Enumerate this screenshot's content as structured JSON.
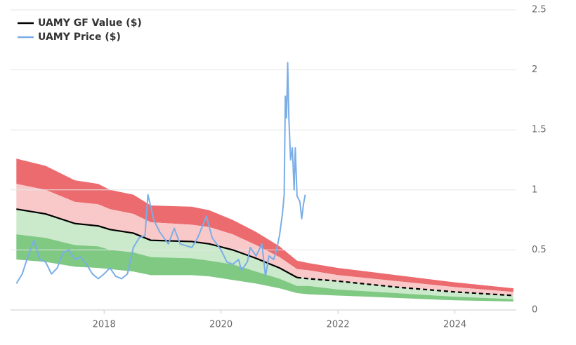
{
  "chart_data": {
    "type": "line",
    "x": [
      2016.5,
      2017.0,
      2017.5,
      2017.9,
      2018.1,
      2018.5,
      2018.8,
      2019.5,
      2019.8,
      2020.2,
      2020.6,
      2021.0,
      2021.3,
      2021.5,
      2022,
      2023,
      2024,
      2025
    ],
    "series": [
      {
        "name": "UAMY GF Value ($)",
        "color": "#000000",
        "dash_from_x": 2021.5,
        "values": [
          0.84,
          0.8,
          0.72,
          0.7,
          0.67,
          0.64,
          0.58,
          0.57,
          0.55,
          0.5,
          0.43,
          0.35,
          0.27,
          0.26,
          0.24,
          0.19,
          0.15,
          0.12
        ]
      },
      {
        "name": "UAMY Price ($)",
        "color": "#7aaee6",
        "x": [
          2016.5,
          2016.6,
          2016.7,
          2016.8,
          2016.9,
          2017.0,
          2017.1,
          2017.2,
          2017.3,
          2017.4,
          2017.5,
          2017.6,
          2017.7,
          2017.8,
          2017.9,
          2018.0,
          2018.1,
          2018.2,
          2018.3,
          2018.4,
          2018.5,
          2018.6,
          2018.7,
          2018.75,
          2018.85,
          2018.95,
          2019.1,
          2019.2,
          2019.3,
          2019.5,
          2019.6,
          2019.75,
          2019.85,
          2020.0,
          2020.1,
          2020.2,
          2020.3,
          2020.35,
          2020.45,
          2020.5,
          2020.6,
          2020.7,
          2020.76,
          2020.82,
          2020.9,
          2020.95,
          2021.0,
          2021.05,
          2021.08,
          2021.1,
          2021.12,
          2021.14,
          2021.16,
          2021.19,
          2021.22,
          2021.25,
          2021.27,
          2021.3,
          2021.35,
          2021.38,
          2021.41,
          2021.44
        ],
        "values": [
          0.22,
          0.3,
          0.45,
          0.58,
          0.42,
          0.4,
          0.3,
          0.35,
          0.48,
          0.5,
          0.42,
          0.44,
          0.38,
          0.3,
          0.26,
          0.3,
          0.35,
          0.28,
          0.26,
          0.3,
          0.52,
          0.6,
          0.62,
          0.96,
          0.75,
          0.65,
          0.55,
          0.68,
          0.55,
          0.52,
          0.6,
          0.78,
          0.6,
          0.5,
          0.4,
          0.38,
          0.42,
          0.33,
          0.4,
          0.52,
          0.45,
          0.55,
          0.28,
          0.45,
          0.42,
          0.5,
          0.62,
          0.8,
          0.96,
          1.78,
          1.6,
          2.06,
          1.6,
          1.25,
          1.35,
          1.0,
          1.35,
          0.95,
          0.9,
          0.76,
          0.88,
          0.96
        ]
      }
    ],
    "band_edges": [
      [
        1.26,
        1.2,
        1.08,
        1.05,
        1.0,
        0.96,
        0.87,
        0.86,
        0.83,
        0.75,
        0.65,
        0.53,
        0.41,
        0.39,
        0.35,
        0.29,
        0.23,
        0.18
      ],
      [
        1.05,
        1.0,
        0.9,
        0.88,
        0.84,
        0.8,
        0.73,
        0.71,
        0.69,
        0.63,
        0.54,
        0.44,
        0.34,
        0.33,
        0.29,
        0.24,
        0.19,
        0.15
      ],
      [
        0.63,
        0.6,
        0.54,
        0.53,
        0.5,
        0.48,
        0.44,
        0.43,
        0.41,
        0.38,
        0.32,
        0.26,
        0.2,
        0.2,
        0.17,
        0.14,
        0.11,
        0.09
      ],
      [
        0.42,
        0.4,
        0.36,
        0.35,
        0.34,
        0.32,
        0.29,
        0.29,
        0.28,
        0.25,
        0.22,
        0.18,
        0.14,
        0.13,
        0.12,
        0.1,
        0.08,
        0.07
      ]
    ],
    "band_colors": [
      "#ec6b6f",
      "#f9c9ca",
      "#cbe9cb",
      "#7fc983"
    ],
    "xlim": [
      2016.4,
      2025.05
    ],
    "xticks": [
      2018,
      2020,
      2022,
      2024
    ],
    "ylim": [
      0,
      2.5
    ],
    "yticks": [
      0,
      0.5,
      1,
      1.5,
      2,
      2.5
    ],
    "grid": true
  }
}
